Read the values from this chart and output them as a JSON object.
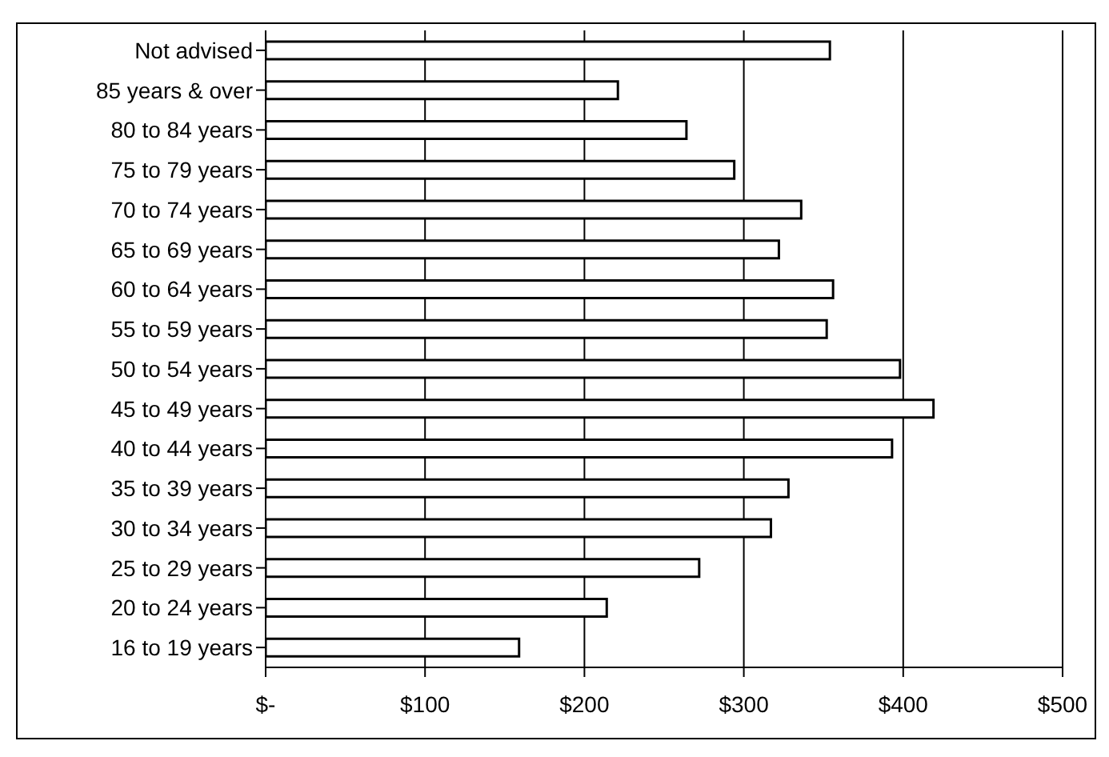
{
  "chart_data": {
    "type": "bar",
    "orientation": "horizontal",
    "categories": [
      "Not advised",
      "85 years & over",
      "80 to 84 years",
      "75 to 79 years",
      "70 to 74 years",
      "65 to 69 years",
      "60 to 64 years",
      "55 to 59 years",
      "50 to 54 years",
      "45 to 49 years",
      "40 to 44 years",
      "35 to 39 years",
      "30 to 34 years",
      "25 to 29 years",
      "20 to 24 years",
      "16 to 19 years"
    ],
    "values": [
      354,
      221,
      264,
      294,
      336,
      322,
      356,
      352,
      398,
      419,
      393,
      328,
      317,
      272,
      214,
      159
    ],
    "color": "#ffffff",
    "xlim": [
      0,
      500
    ],
    "xticks": [
      {
        "value": 0,
        "label": "$-"
      },
      {
        "value": 100,
        "label": "$100"
      },
      {
        "value": 200,
        "label": "$200"
      },
      {
        "value": 300,
        "label": "$300"
      },
      {
        "value": 400,
        "label": "$400"
      },
      {
        "value": 500,
        "label": "$500"
      }
    ],
    "grid": "x"
  }
}
